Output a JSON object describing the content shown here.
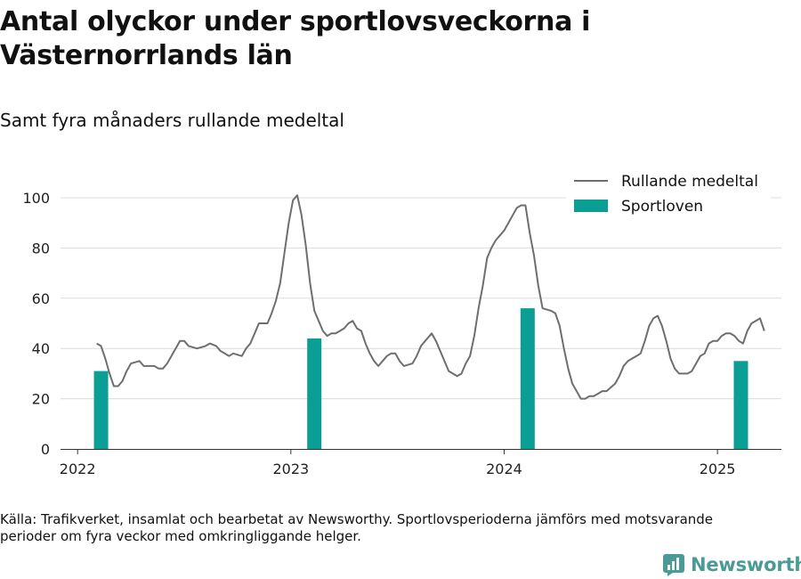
{
  "header": {
    "title": "Antal olyckor under sportlovsveckorna i Västernorrlands län",
    "subtitle": "Samt fyra månaders rullande medeltal"
  },
  "footer": {
    "source": "Källa: Trafikverket, insamlat och bearbetat av Newsworthy. Sportlovsperioderna jämförs med motsvarande perioder om fyra veckor med omkringliggande helger.",
    "brand": "Newsworthy"
  },
  "colors": {
    "line": "#6e6e6e",
    "bar": "#0a9e94",
    "grid": "#dcdcdc",
    "brand": "#4a9a95"
  },
  "chart_data": {
    "type": "bar+line",
    "title": "Antal olyckor under sportlovsveckorna i Västernorrlands län",
    "subtitle": "Samt fyra månaders rullande medeltal",
    "xlabel": "",
    "ylabel": "",
    "x_ticks": [
      "2022",
      "2023",
      "2024",
      "2025"
    ],
    "y_ticks": [
      0,
      20,
      40,
      60,
      80,
      100
    ],
    "xlim": [
      2021.92,
      2025.3
    ],
    "ylim": [
      0,
      100
    ],
    "grid": true,
    "legend": "top-right",
    "series": [
      {
        "name": "Rullande medeltal",
        "type": "line",
        "points": [
          [
            2022.09,
            42
          ],
          [
            2022.11,
            41
          ],
          [
            2022.13,
            36
          ],
          [
            2022.15,
            30
          ],
          [
            2022.17,
            25
          ],
          [
            2022.19,
            25
          ],
          [
            2022.21,
            27
          ],
          [
            2022.23,
            31
          ],
          [
            2022.25,
            34
          ],
          [
            2022.29,
            35
          ],
          [
            2022.31,
            33
          ],
          [
            2022.36,
            33
          ],
          [
            2022.38,
            32
          ],
          [
            2022.4,
            32
          ],
          [
            2022.42,
            34
          ],
          [
            2022.46,
            40
          ],
          [
            2022.48,
            43
          ],
          [
            2022.5,
            43
          ],
          [
            2022.52,
            41
          ],
          [
            2022.56,
            40
          ],
          [
            2022.6,
            41
          ],
          [
            2022.62,
            42
          ],
          [
            2022.65,
            41
          ],
          [
            2022.67,
            39
          ],
          [
            2022.69,
            38
          ],
          [
            2022.71,
            37
          ],
          [
            2022.73,
            38
          ],
          [
            2022.77,
            37
          ],
          [
            2022.79,
            40
          ],
          [
            2022.81,
            42
          ],
          [
            2022.83,
            46
          ],
          [
            2022.85,
            50
          ],
          [
            2022.89,
            50
          ],
          [
            2022.91,
            54
          ],
          [
            2022.93,
            59
          ],
          [
            2022.95,
            66
          ],
          [
            2022.97,
            78
          ],
          [
            2022.99,
            90
          ],
          [
            2023.01,
            99
          ],
          [
            2023.03,
            101
          ],
          [
            2023.05,
            93
          ],
          [
            2023.07,
            81
          ],
          [
            2023.09,
            66
          ],
          [
            2023.11,
            55
          ],
          [
            2023.13,
            51
          ],
          [
            2023.15,
            47
          ],
          [
            2023.17,
            45
          ],
          [
            2023.19,
            46
          ],
          [
            2023.21,
            46
          ],
          [
            2023.23,
            47
          ],
          [
            2023.25,
            48
          ],
          [
            2023.27,
            50
          ],
          [
            2023.29,
            51
          ],
          [
            2023.31,
            48
          ],
          [
            2023.33,
            47
          ],
          [
            2023.35,
            42
          ],
          [
            2023.37,
            38
          ],
          [
            2023.39,
            35
          ],
          [
            2023.41,
            33
          ],
          [
            2023.43,
            35
          ],
          [
            2023.45,
            37
          ],
          [
            2023.47,
            38
          ],
          [
            2023.49,
            38
          ],
          [
            2023.51,
            35
          ],
          [
            2023.53,
            33
          ],
          [
            2023.57,
            34
          ],
          [
            2023.59,
            37
          ],
          [
            2023.61,
            41
          ],
          [
            2023.63,
            43
          ],
          [
            2023.66,
            46
          ],
          [
            2023.68,
            43
          ],
          [
            2023.7,
            39
          ],
          [
            2023.72,
            35
          ],
          [
            2023.74,
            31
          ],
          [
            2023.76,
            30
          ],
          [
            2023.78,
            29
          ],
          [
            2023.8,
            30
          ],
          [
            2023.82,
            34
          ],
          [
            2023.84,
            37
          ],
          [
            2023.86,
            45
          ],
          [
            2023.88,
            56
          ],
          [
            2023.9,
            65
          ],
          [
            2023.92,
            76
          ],
          [
            2023.94,
            80
          ],
          [
            2023.96,
            83
          ],
          [
            2023.98,
            85
          ],
          [
            2024.0,
            87
          ],
          [
            2024.02,
            90
          ],
          [
            2024.04,
            93
          ],
          [
            2024.06,
            96
          ],
          [
            2024.08,
            97
          ],
          [
            2024.1,
            97
          ],
          [
            2024.12,
            86
          ],
          [
            2024.14,
            77
          ],
          [
            2024.16,
            65
          ],
          [
            2024.18,
            56
          ],
          [
            2024.22,
            55
          ],
          [
            2024.24,
            54
          ],
          [
            2024.26,
            49
          ],
          [
            2024.28,
            40
          ],
          [
            2024.3,
            32
          ],
          [
            2024.32,
            26
          ],
          [
            2024.34,
            23
          ],
          [
            2024.36,
            20
          ],
          [
            2024.38,
            20
          ],
          [
            2024.4,
            21
          ],
          [
            2024.42,
            21
          ],
          [
            2024.44,
            22
          ],
          [
            2024.46,
            23
          ],
          [
            2024.48,
            23
          ],
          [
            2024.52,
            26
          ],
          [
            2024.54,
            29
          ],
          [
            2024.56,
            33
          ],
          [
            2024.58,
            35
          ],
          [
            2024.6,
            36
          ],
          [
            2024.62,
            37
          ],
          [
            2024.64,
            38
          ],
          [
            2024.66,
            43
          ],
          [
            2024.68,
            49
          ],
          [
            2024.7,
            52
          ],
          [
            2024.72,
            53
          ],
          [
            2024.74,
            49
          ],
          [
            2024.76,
            43
          ],
          [
            2024.78,
            36
          ],
          [
            2024.8,
            32
          ],
          [
            2024.82,
            30
          ],
          [
            2024.84,
            30
          ],
          [
            2024.86,
            30
          ],
          [
            2024.88,
            31
          ],
          [
            2024.9,
            34
          ],
          [
            2024.92,
            37
          ],
          [
            2024.94,
            38
          ],
          [
            2024.96,
            42
          ],
          [
            2024.98,
            43
          ],
          [
            2025.0,
            43
          ],
          [
            2025.02,
            45
          ],
          [
            2025.04,
            46
          ],
          [
            2025.06,
            46
          ],
          [
            2025.08,
            45
          ],
          [
            2025.1,
            43
          ],
          [
            2025.12,
            42
          ],
          [
            2025.14,
            47
          ],
          [
            2025.16,
            50
          ],
          [
            2025.18,
            51
          ],
          [
            2025.2,
            52
          ],
          [
            2025.22,
            47
          ]
        ]
      },
      {
        "name": "Sportloven",
        "type": "bar",
        "x": [
          2022.11,
          2023.11,
          2024.11,
          2025.11
        ],
        "values": [
          31,
          44,
          56,
          35
        ]
      }
    ]
  }
}
